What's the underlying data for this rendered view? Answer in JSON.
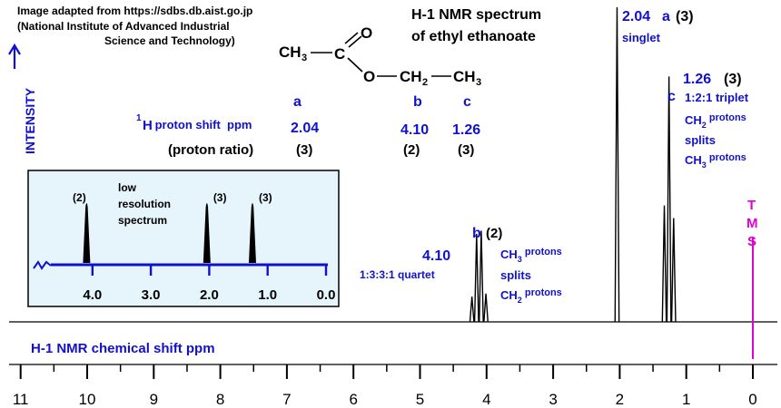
{
  "source_note": {
    "line1": "Image adapted from https://sdbs.db.aist.go.jp",
    "line2": "(National Institute of Advanced Industrial",
    "line3": "Science and Technology)"
  },
  "title": {
    "line1": "H-1 NMR spectrum",
    "line2": "of ethyl ethanoate"
  },
  "molecule": {
    "ch3_left": "CH",
    "ch3_left_sub": "3",
    "carbon": "C",
    "o_double": "O",
    "o_single": "O",
    "ch2": "CH",
    "ch2_sub": "2",
    "ch3_right": "CH",
    "ch3_right_sub": "3"
  },
  "shift_table": {
    "label_prefix_sup": "1",
    "label_h": "H",
    "label_rest": " proton shift  ppm",
    "ratio_label": "(proton ratio)",
    "columns": [
      {
        "letter": "a",
        "shift": "2.04",
        "ratio": "(3)"
      },
      {
        "letter": "b",
        "shift": "4.10",
        "ratio": "(2)"
      },
      {
        "letter": "c",
        "shift": "1.26",
        "ratio": "(3)"
      }
    ]
  },
  "intensity_label": "INTENSITY",
  "low_res": {
    "title_lines": [
      "low",
      "resolution",
      "spectrum"
    ],
    "peaks": [
      {
        "x": 4.1,
        "label": "(2)"
      },
      {
        "x": 2.04,
        "label": "(3)"
      },
      {
        "x": 1.26,
        "label": "(3)"
      }
    ],
    "ticks": [
      "4.0",
      "3.0",
      "2.0",
      "1.0",
      "0.0"
    ],
    "tick_values": [
      4,
      3,
      2,
      1,
      0
    ]
  },
  "annotations": {
    "a_shift": "2.04",
    "a_letter": "a",
    "a_ratio": "(3)",
    "a_desc": "singlet",
    "c_shift": "1.26",
    "c_ratio": "(3)",
    "c_letter": "c",
    "c_pattern": "1:2:1 triplet",
    "c_l1": "CH",
    "c_l1_sub": "2",
    "c_l1_rest": " protons",
    "c_l2": "splits",
    "c_l3": "CH",
    "c_l3_sub": "3",
    "c_l3_rest": " protons",
    "b_letter": "b",
    "b_ratio": "(2)",
    "b_shift": "4.10",
    "b_pattern": "1:3:3:1 quartet",
    "b_l1": "CH",
    "b_l1_sub": "3",
    "b_l1_rest": " protons",
    "b_l2": "splits",
    "b_l3": "CH",
    "b_l3_sub": "2",
    "b_l3_rest": " protons",
    "tms": [
      "T",
      "M",
      "S"
    ]
  },
  "axis_label": "H-1 NMR chemical shift  ppm",
  "chart_data": {
    "type": "line",
    "xlabel": "H-1 NMR chemical shift  ppm",
    "ylabel": "INTENSITY",
    "xlim": [
      11,
      0
    ],
    "x_ticks": [
      11,
      10,
      9,
      8,
      7,
      6,
      5,
      4,
      3,
      2,
      1,
      0
    ],
    "peaks": [
      {
        "group": "a",
        "shift": 2.04,
        "multiplicity": "singlet",
        "ratio": 3,
        "lines": [
          {
            "x": 2.04,
            "h": 1.0
          }
        ]
      },
      {
        "group": "b",
        "shift": 4.1,
        "multiplicity": "1:3:3:1 quartet",
        "ratio": 2,
        "lines": [
          {
            "x": 4.22,
            "h": 0.08
          },
          {
            "x": 4.15,
            "h": 0.28
          },
          {
            "x": 4.08,
            "h": 0.29
          },
          {
            "x": 4.01,
            "h": 0.09
          }
        ]
      },
      {
        "group": "c",
        "shift": 1.26,
        "multiplicity": "1:2:1 triplet",
        "ratio": 3,
        "lines": [
          {
            "x": 1.33,
            "h": 0.37
          },
          {
            "x": 1.26,
            "h": 0.78
          },
          {
            "x": 1.19,
            "h": 0.33
          }
        ]
      }
    ],
    "tms": 0
  },
  "colors": {
    "blue": "#1010d0",
    "magenta": "#e000d0",
    "box_fill": "#e6f5fb"
  }
}
